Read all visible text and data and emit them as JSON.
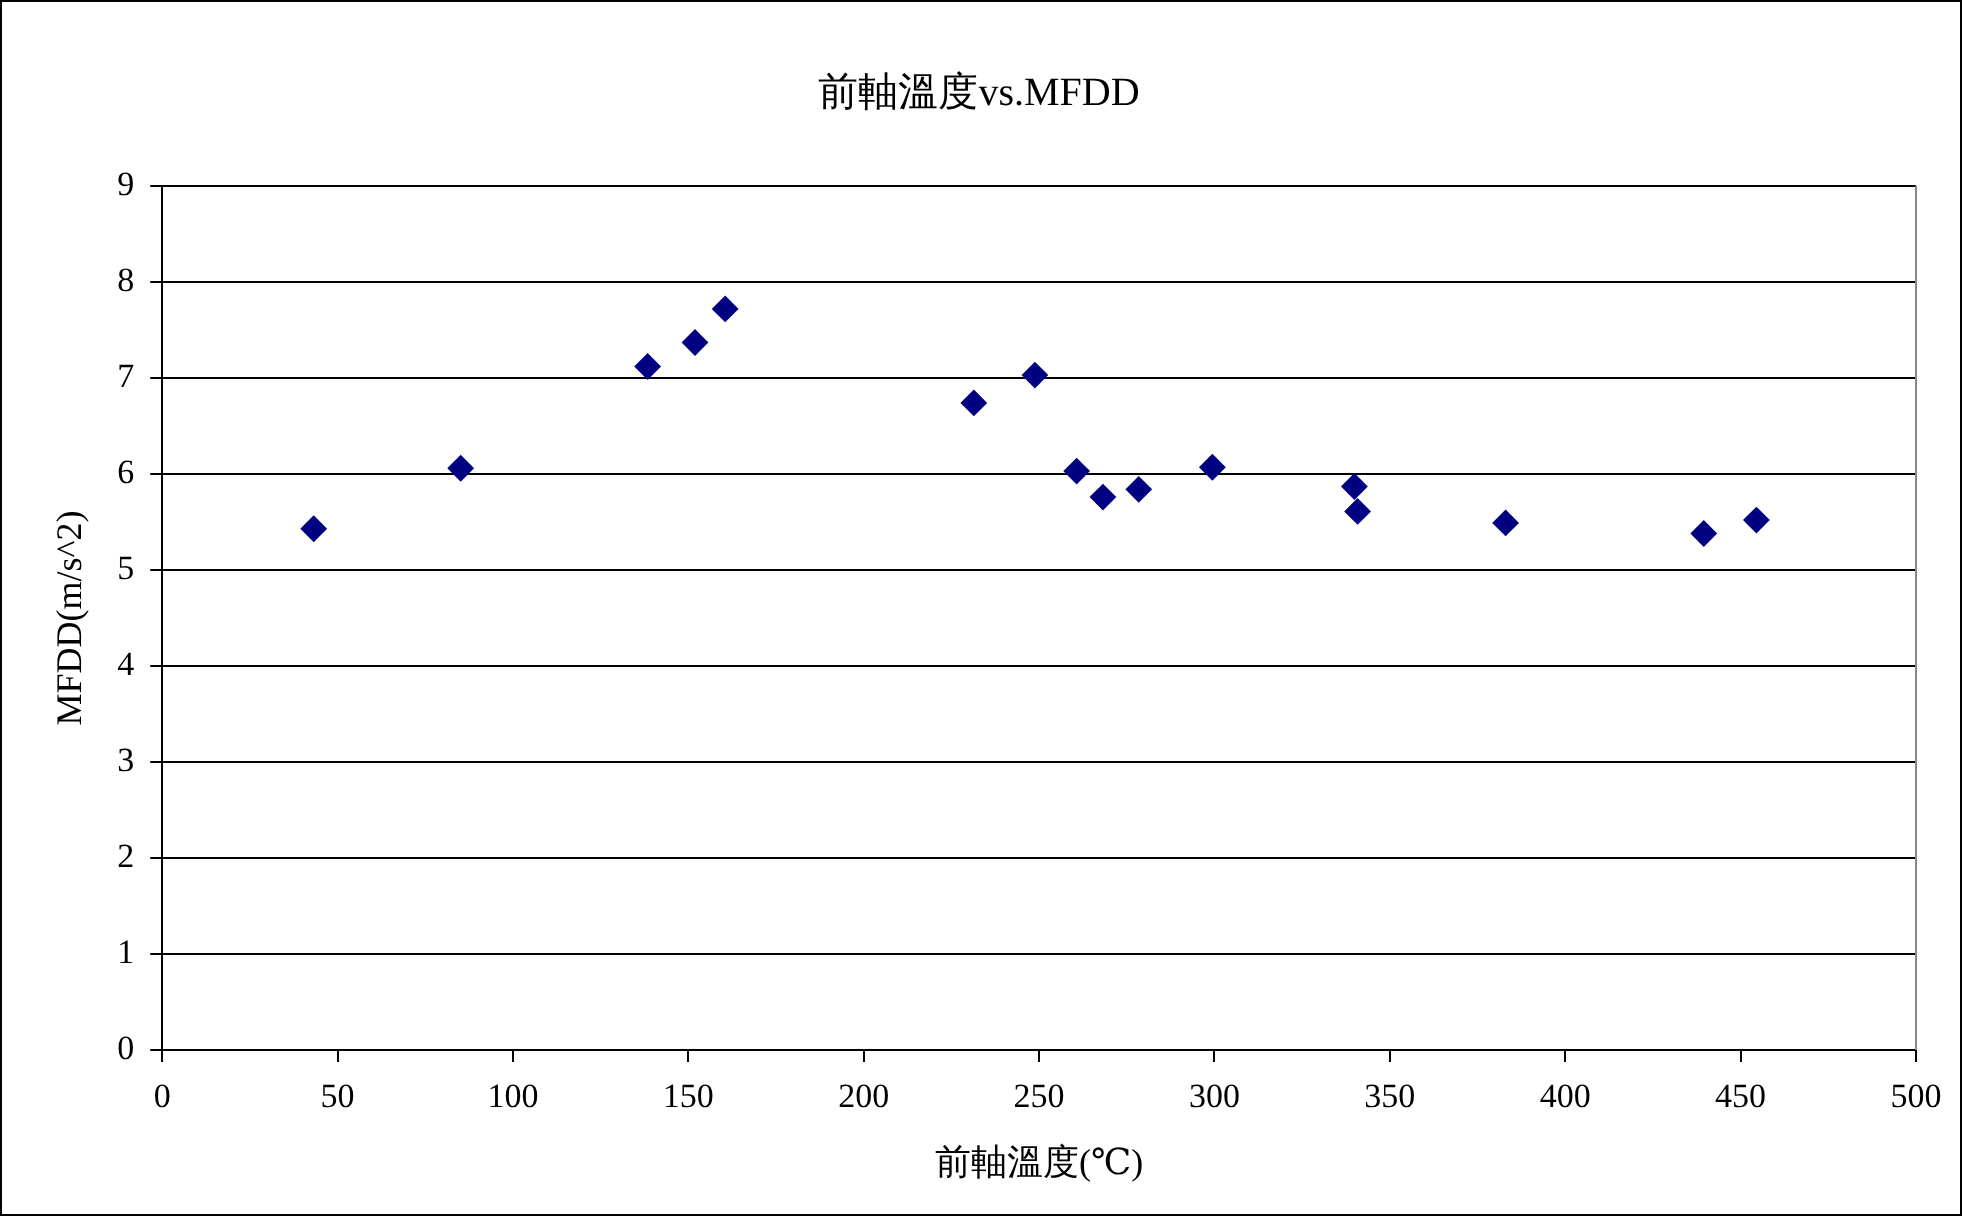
{
  "chart_data": {
    "type": "scatter",
    "title": "前軸溫度vs.MFDD",
    "xlabel": "前軸溫度(℃)",
    "ylabel": "MFDD(m/s^2)",
    "x": [
      43.2,
      85.1,
      138.4,
      151.9,
      160.5,
      231.4,
      248.8,
      260.7,
      268.2,
      278.4,
      299.4,
      339.9,
      340.8,
      383,
      439.5,
      454.5
    ],
    "series": [
      {
        "color": "#000080",
        "values": [
          5.43,
          6.06,
          7.12,
          7.37,
          7.72,
          6.74,
          7.03,
          6.03,
          5.76,
          5.84,
          6.07,
          5.87,
          5.61,
          5.49,
          5.38,
          5.52
        ]
      }
    ],
    "xlim": [
      0,
      500
    ],
    "xticks": [
      0,
      50,
      100,
      150,
      200,
      250,
      300,
      350,
      400,
      450,
      500
    ],
    "ylim": [
      0,
      9
    ],
    "yticks": [
      0,
      1,
      2,
      3,
      4,
      5,
      6,
      7,
      8,
      9
    ],
    "grid": "y",
    "legend": false,
    "marker": "diamond"
  }
}
